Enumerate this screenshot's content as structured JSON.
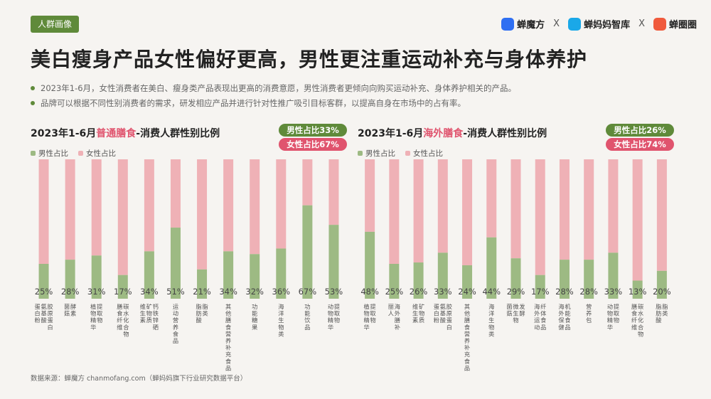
{
  "tag": "人群画像",
  "logos": {
    "brand1": "蝉魔方",
    "brand2": "蝉妈妈智库",
    "brand3": "蝉圈圈",
    "separator": "X",
    "colors": {
      "brand1": "#2f6ff2",
      "brand2": "#1aa8e8",
      "brand3": "#f05a3c"
    }
  },
  "title": "美白瘦身产品女性偏好更高，男性更注重运动补充与身体养护",
  "bullets": [
    "2023年1-6月，女性消费者在美白、瘦身类产品表现出更高的消费意愿，男性消费者更倾向向购买运动补充、身体养护相关的产品。",
    "品牌可以根据不同性别消费者的需求，研发相应产品并进行针对性推广吸引目标客群，以提高自身在市场中的占有率。"
  ],
  "source": "数据来源：蝉魔方 chanmofang.com（蝉妈妈旗下行业研究数据平台）",
  "colors": {
    "male": "#9dba83",
    "female": "#efb1b6",
    "accent_green": "#5f8a3a",
    "accent_pink": "#e0546e"
  },
  "chart_data": [
    {
      "type": "bar",
      "stacked": true,
      "title_prefix": "2023年1-6月",
      "title_highlight": "普通膳食",
      "title_suffix": "-消费人群性别比例",
      "male_badge": "男性占比33%",
      "female_badge": "女性占比67%",
      "legend": [
        "男性占比",
        "女性占比"
      ],
      "categories": [
        "蛋白粉/氨基酸/胶原蛋白",
        "菌菇/酵素",
        "植物精华/提取物",
        "膳食纤维/碳水化合物",
        "维生素/矿物质/钙铁锌硒",
        "运动营养食品",
        "脂肪酸/脂类",
        "其他膳食营养补充食品",
        "功能糖果",
        "海洋生物类",
        "功能饮品",
        "动物精华/提取物"
      ],
      "series": [
        {
          "name": "男性占比",
          "values": [
            25,
            28,
            31,
            17,
            34,
            51,
            21,
            34,
            32,
            36,
            67,
            53
          ]
        },
        {
          "name": "女性占比",
          "values": [
            75,
            72,
            69,
            83,
            66,
            49,
            79,
            66,
            68,
            64,
            33,
            47
          ]
        }
      ],
      "value_labels": [
        "25%",
        "28%",
        "31%",
        "17%",
        "34%",
        "51%",
        "21%",
        "34%",
        "32%",
        "36%",
        "67%",
        "53%"
      ],
      "ylim": [
        0,
        100
      ]
    },
    {
      "type": "bar",
      "stacked": true,
      "title_prefix": "2023年1-6月",
      "title_highlight": "海外膳食",
      "title_suffix": "-消费人群性别比例",
      "male_badge": "男性占比26%",
      "female_badge": "女性占比74%",
      "legend": [
        "男性占比",
        "女性占比"
      ],
      "categories": [
        "植物精华/提取物",
        "丽人/海外膳补",
        "维生素/矿物质",
        "蛋白粉/氨基酸/胶原蛋白",
        "其他膳食营养补充食品",
        "海洋生物类",
        "菌菇/微生物/发酵",
        "海外运动/纤体食品",
        "海外保健/机能食品",
        "营养包",
        "动物精华/提取物",
        "膳食纤维/碳水化合物",
        "脂肪酸/脂类"
      ],
      "series": [
        {
          "name": "男性占比",
          "values": [
            48,
            25,
            26,
            33,
            24,
            44,
            29,
            17,
            28,
            28,
            33,
            13,
            20
          ]
        },
        {
          "name": "女性占比",
          "values": [
            52,
            75,
            74,
            67,
            76,
            56,
            71,
            83,
            72,
            72,
            67,
            87,
            80
          ]
        }
      ],
      "value_labels": [
        "48%",
        "25%",
        "26%",
        "33%",
        "24%",
        "44%",
        "29%",
        "17%",
        "28%",
        "28%",
        "33%",
        "13%",
        "20%"
      ],
      "ylim": [
        0,
        100
      ]
    }
  ]
}
